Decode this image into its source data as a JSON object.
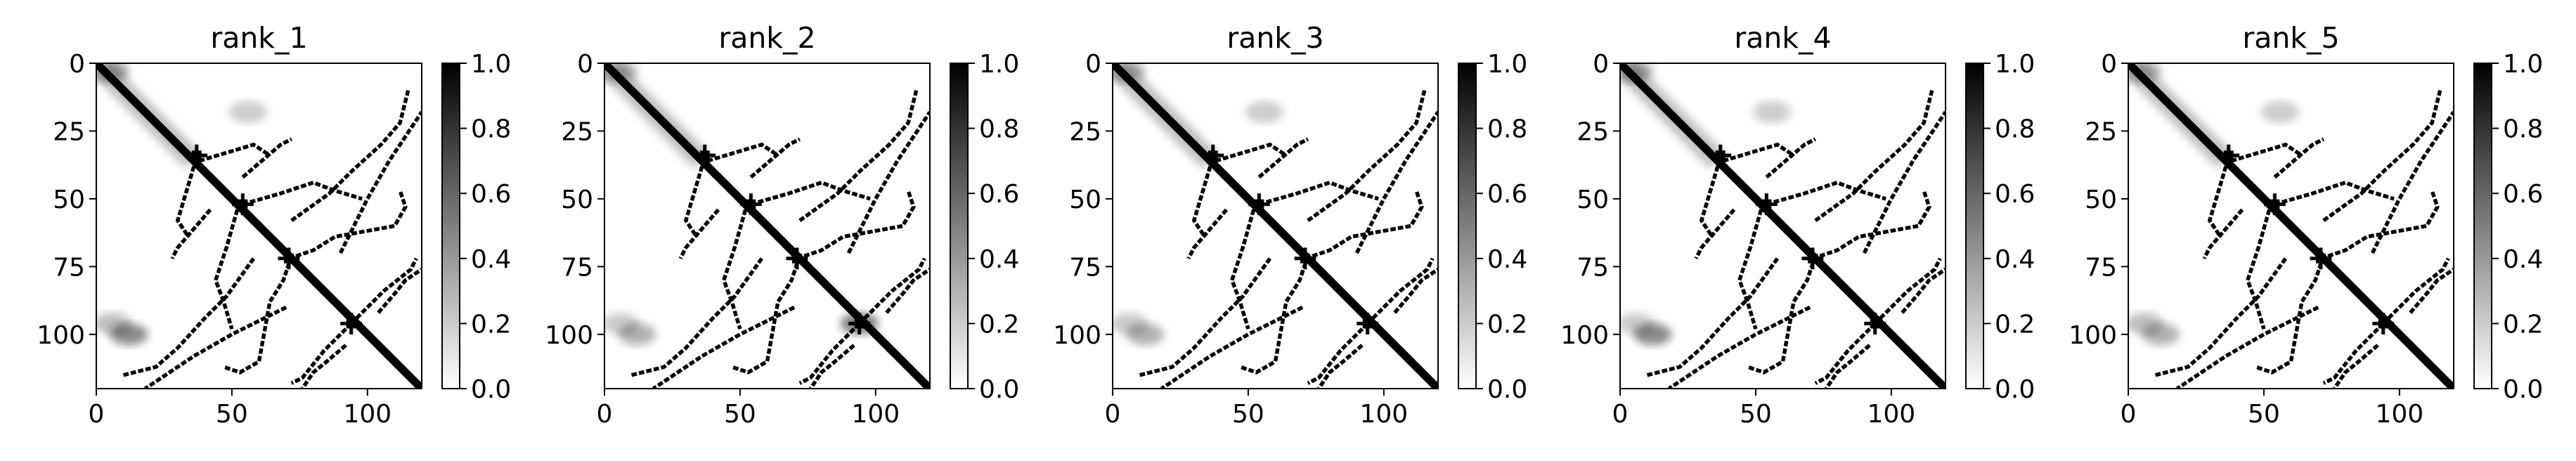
{
  "figure": {
    "panel_count": 5,
    "colormap": "gray_r",
    "colors": {
      "background": "#ffffff",
      "axis": "#000000",
      "low": "#ffffff",
      "high": "#000000"
    }
  },
  "chart_data": [
    {
      "type": "heatmap",
      "title": "rank_1",
      "matrix_size": 120,
      "xlim": [
        0,
        120
      ],
      "ylim": [
        120,
        0
      ],
      "x_ticks": [
        0,
        50,
        100
      ],
      "y_ticks": [
        0,
        25,
        50,
        75,
        100
      ],
      "colorbar": {
        "min": 0.0,
        "max": 1.0,
        "ticks": [
          "0.0",
          "0.2",
          "0.4",
          "0.6",
          "0.8",
          "1.0"
        ]
      },
      "features": {
        "diagonal": [
          [
            0,
            0
          ],
          [
            120,
            120
          ]
        ],
        "crossings": [
          [
            37,
            34
          ],
          [
            54,
            52
          ],
          [
            71,
            72
          ],
          [
            94,
            96
          ]
        ],
        "contact_arms": [
          [
            [
              38,
              36
            ],
            [
              58,
              30
            ],
            [
              64,
              34
            ]
          ],
          [
            [
              54,
              52
            ],
            [
              68,
              48
            ],
            [
              80,
              44
            ],
            [
              88,
              47
            ],
            [
              98,
              50
            ]
          ],
          [
            [
              71,
              72
            ],
            [
              80,
              69
            ],
            [
              88,
              64
            ],
            [
              110,
              60
            ],
            [
              114,
              53
            ],
            [
              112,
              47
            ]
          ],
          [
            [
              42,
              54
            ],
            [
              30,
              68
            ],
            [
              28,
              72
            ]
          ],
          [
            [
              58,
              72
            ],
            [
              48,
              86
            ],
            [
              40,
              94
            ],
            [
              30,
              105
            ],
            [
              22,
              112
            ],
            [
              10,
              115
            ]
          ],
          [
            [
              70,
              90
            ],
            [
              58,
              96
            ],
            [
              50,
              100
            ],
            [
              36,
              108
            ],
            [
              24,
              116
            ],
            [
              18,
              120
            ]
          ],
          [
            [
              94,
              96
            ],
            [
              106,
              84
            ],
            [
              116,
              76
            ],
            [
              118,
              72
            ]
          ],
          [
            [
              92,
              104
            ],
            [
              85,
              110
            ],
            [
              80,
              114
            ],
            [
              76,
              120
            ]
          ]
        ],
        "noise_patches": [
          [
            5,
            3,
            0.35
          ],
          [
            6,
            96,
            0.25
          ],
          [
            12,
            100,
            0.45
          ],
          [
            56,
            18,
            0.2
          ]
        ]
      }
    },
    {
      "type": "heatmap",
      "title": "rank_2",
      "matrix_size": 120,
      "xlim": [
        0,
        120
      ],
      "ylim": [
        120,
        0
      ],
      "x_ticks": [
        0,
        50,
        100
      ],
      "y_ticks": [
        0,
        25,
        50,
        75,
        100
      ],
      "colorbar": {
        "min": 0.0,
        "max": 1.0,
        "ticks": [
          "0.0",
          "0.2",
          "0.4",
          "0.6",
          "0.8",
          "1.0"
        ]
      },
      "features": {
        "diagonal": [
          [
            0,
            0
          ],
          [
            120,
            120
          ]
        ],
        "crossings": [
          [
            37,
            34
          ],
          [
            54,
            52
          ],
          [
            71,
            72
          ],
          [
            94,
            96
          ]
        ],
        "contact_arms": [
          [
            [
              38,
              36
            ],
            [
              58,
              30
            ],
            [
              64,
              34
            ]
          ],
          [
            [
              54,
              52
            ],
            [
              68,
              48
            ],
            [
              80,
              44
            ],
            [
              88,
              47
            ],
            [
              98,
              50
            ]
          ],
          [
            [
              71,
              72
            ],
            [
              80,
              69
            ],
            [
              88,
              64
            ],
            [
              110,
              60
            ],
            [
              114,
              53
            ],
            [
              112,
              47
            ]
          ],
          [
            [
              42,
              54
            ],
            [
              30,
              68
            ],
            [
              28,
              72
            ]
          ],
          [
            [
              58,
              72
            ],
            [
              48,
              86
            ],
            [
              40,
              94
            ],
            [
              30,
              105
            ],
            [
              22,
              112
            ],
            [
              10,
              115
            ]
          ],
          [
            [
              70,
              90
            ],
            [
              58,
              96
            ],
            [
              50,
              100
            ],
            [
              36,
              108
            ],
            [
              24,
              116
            ],
            [
              18,
              120
            ]
          ],
          [
            [
              94,
              96
            ],
            [
              106,
              84
            ],
            [
              116,
              76
            ],
            [
              118,
              72
            ]
          ],
          [
            [
              92,
              104
            ],
            [
              85,
              110
            ],
            [
              80,
              114
            ],
            [
              76,
              120
            ]
          ]
        ],
        "noise_patches": [
          [
            5,
            3,
            0.3
          ],
          [
            6,
            96,
            0.2
          ],
          [
            12,
            100,
            0.3
          ],
          [
            94,
            96,
            0.5
          ]
        ]
      }
    },
    {
      "type": "heatmap",
      "title": "rank_3",
      "matrix_size": 120,
      "xlim": [
        0,
        120
      ],
      "ylim": [
        120,
        0
      ],
      "x_ticks": [
        0,
        50,
        100
      ],
      "y_ticks": [
        0,
        25,
        50,
        75,
        100
      ],
      "colorbar": {
        "min": 0.0,
        "max": 1.0,
        "ticks": [
          "0.0",
          "0.2",
          "0.4",
          "0.6",
          "0.8",
          "1.0"
        ]
      },
      "features": {
        "diagonal": [
          [
            0,
            0
          ],
          [
            120,
            120
          ]
        ],
        "crossings": [
          [
            37,
            34
          ],
          [
            54,
            52
          ],
          [
            71,
            72
          ],
          [
            94,
            96
          ]
        ],
        "contact_arms": [
          [
            [
              38,
              36
            ],
            [
              58,
              30
            ],
            [
              64,
              34
            ]
          ],
          [
            [
              54,
              52
            ],
            [
              68,
              48
            ],
            [
              80,
              44
            ],
            [
              88,
              47
            ],
            [
              98,
              50
            ]
          ],
          [
            [
              71,
              72
            ],
            [
              80,
              69
            ],
            [
              88,
              64
            ],
            [
              110,
              60
            ],
            [
              114,
              53
            ],
            [
              112,
              47
            ]
          ],
          [
            [
              42,
              54
            ],
            [
              30,
              68
            ],
            [
              28,
              72
            ]
          ],
          [
            [
              58,
              72
            ],
            [
              48,
              86
            ],
            [
              40,
              94
            ],
            [
              30,
              105
            ],
            [
              22,
              112
            ],
            [
              10,
              115
            ]
          ],
          [
            [
              70,
              90
            ],
            [
              58,
              96
            ],
            [
              50,
              100
            ],
            [
              36,
              108
            ],
            [
              24,
              116
            ],
            [
              18,
              120
            ]
          ],
          [
            [
              94,
              96
            ],
            [
              106,
              84
            ],
            [
              116,
              76
            ],
            [
              118,
              72
            ]
          ],
          [
            [
              92,
              104
            ],
            [
              85,
              110
            ],
            [
              80,
              114
            ],
            [
              76,
              120
            ]
          ]
        ],
        "noise_patches": [
          [
            5,
            3,
            0.3
          ],
          [
            6,
            96,
            0.2
          ],
          [
            12,
            100,
            0.3
          ],
          [
            56,
            18,
            0.2
          ]
        ]
      }
    },
    {
      "type": "heatmap",
      "title": "rank_4",
      "matrix_size": 120,
      "xlim": [
        0,
        120
      ],
      "ylim": [
        120,
        0
      ],
      "x_ticks": [
        0,
        50,
        100
      ],
      "y_ticks": [
        0,
        25,
        50,
        75,
        100
      ],
      "colorbar": {
        "min": 0.0,
        "max": 1.0,
        "ticks": [
          "0.0",
          "0.2",
          "0.4",
          "0.6",
          "0.8",
          "1.0"
        ]
      },
      "features": {
        "diagonal": [
          [
            0,
            0
          ],
          [
            120,
            120
          ]
        ],
        "crossings": [
          [
            37,
            34
          ],
          [
            54,
            52
          ],
          [
            71,
            72
          ],
          [
            94,
            96
          ]
        ],
        "contact_arms": [
          [
            [
              38,
              36
            ],
            [
              58,
              30
            ],
            [
              64,
              34
            ]
          ],
          [
            [
              54,
              52
            ],
            [
              68,
              48
            ],
            [
              80,
              44
            ],
            [
              88,
              47
            ],
            [
              98,
              50
            ]
          ],
          [
            [
              71,
              72
            ],
            [
              80,
              69
            ],
            [
              88,
              64
            ],
            [
              110,
              60
            ],
            [
              114,
              53
            ],
            [
              112,
              47
            ]
          ],
          [
            [
              42,
              54
            ],
            [
              30,
              68
            ],
            [
              28,
              72
            ]
          ],
          [
            [
              58,
              72
            ],
            [
              48,
              86
            ],
            [
              40,
              94
            ],
            [
              30,
              105
            ],
            [
              22,
              112
            ],
            [
              10,
              115
            ]
          ],
          [
            [
              70,
              90
            ],
            [
              58,
              96
            ],
            [
              50,
              100
            ],
            [
              36,
              108
            ],
            [
              24,
              116
            ],
            [
              18,
              120
            ]
          ],
          [
            [
              94,
              96
            ],
            [
              106,
              84
            ],
            [
              116,
              76
            ],
            [
              118,
              72
            ]
          ],
          [
            [
              92,
              104
            ],
            [
              85,
              110
            ],
            [
              80,
              114
            ],
            [
              76,
              120
            ]
          ]
        ],
        "noise_patches": [
          [
            5,
            3,
            0.35
          ],
          [
            6,
            96,
            0.2
          ],
          [
            12,
            100,
            0.45
          ],
          [
            56,
            18,
            0.2
          ]
        ]
      }
    },
    {
      "type": "heatmap",
      "title": "rank_5",
      "matrix_size": 120,
      "xlim": [
        0,
        120
      ],
      "ylim": [
        120,
        0
      ],
      "x_ticks": [
        0,
        50,
        100
      ],
      "y_ticks": [
        0,
        25,
        50,
        75,
        100
      ],
      "colorbar": {
        "min": 0.0,
        "max": 1.0,
        "ticks": [
          "0.0",
          "0.2",
          "0.4",
          "0.6",
          "0.8",
          "1.0"
        ]
      },
      "features": {
        "diagonal": [
          [
            0,
            0
          ],
          [
            120,
            120
          ]
        ],
        "crossings": [
          [
            37,
            34
          ],
          [
            54,
            52
          ],
          [
            71,
            72
          ],
          [
            94,
            96
          ]
        ],
        "contact_arms": [
          [
            [
              38,
              36
            ],
            [
              58,
              30
            ],
            [
              64,
              34
            ]
          ],
          [
            [
              54,
              52
            ],
            [
              68,
              48
            ],
            [
              80,
              44
            ],
            [
              88,
              47
            ],
            [
              98,
              50
            ]
          ],
          [
            [
              71,
              72
            ],
            [
              80,
              69
            ],
            [
              88,
              64
            ],
            [
              110,
              60
            ],
            [
              114,
              53
            ],
            [
              112,
              47
            ]
          ],
          [
            [
              42,
              54
            ],
            [
              30,
              68
            ],
            [
              28,
              72
            ]
          ],
          [
            [
              58,
              72
            ],
            [
              48,
              86
            ],
            [
              40,
              94
            ],
            [
              30,
              105
            ],
            [
              22,
              112
            ],
            [
              10,
              115
            ]
          ],
          [
            [
              70,
              90
            ],
            [
              58,
              96
            ],
            [
              50,
              100
            ],
            [
              36,
              108
            ],
            [
              24,
              116
            ],
            [
              18,
              120
            ]
          ],
          [
            [
              94,
              96
            ],
            [
              106,
              84
            ],
            [
              116,
              76
            ],
            [
              118,
              72
            ]
          ],
          [
            [
              92,
              104
            ],
            [
              85,
              110
            ],
            [
              80,
              114
            ],
            [
              76,
              120
            ]
          ]
        ],
        "noise_patches": [
          [
            5,
            3,
            0.3
          ],
          [
            6,
            96,
            0.25
          ],
          [
            12,
            100,
            0.3
          ],
          [
            56,
            18,
            0.2
          ]
        ]
      }
    }
  ]
}
